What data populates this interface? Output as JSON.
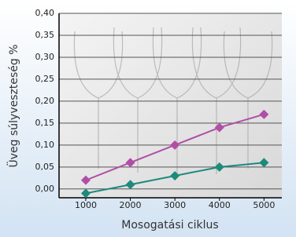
{
  "chart_data": {
    "type": "line",
    "y_label": "Üveg súlyveszteség %",
    "x_label": "Mosogatási ciklus",
    "x": [
      1000,
      2000,
      3000,
      4000,
      5000
    ],
    "series": [
      {
        "color": "#b04fa6",
        "values": [
          0.02,
          0.06,
          0.1,
          0.14,
          0.17
        ]
      },
      {
        "color": "#1d8a7c",
        "values": [
          -0.01,
          0.01,
          0.03,
          0.05,
          0.06
        ]
      }
    ],
    "xlim": [
      400,
      5400
    ],
    "xticks": [
      1000,
      2000,
      3000,
      4000,
      5000
    ],
    "ylim": [
      -0.02,
      0.4
    ],
    "yticks": [
      {
        "value": 0.0,
        "label": "0,00"
      },
      {
        "value": 0.05,
        "label": "0,05"
      },
      {
        "value": 0.1,
        "label": "0,10"
      },
      {
        "value": 0.15,
        "label": "0,15"
      },
      {
        "value": 0.2,
        "label": "0,20"
      },
      {
        "value": 0.25,
        "label": "0,25"
      },
      {
        "value": 0.3,
        "label": "0,30"
      },
      {
        "value": 0.35,
        "label": "0,35"
      },
      {
        "value": 0.4,
        "label": "0,40"
      }
    ],
    "grid": true
  }
}
